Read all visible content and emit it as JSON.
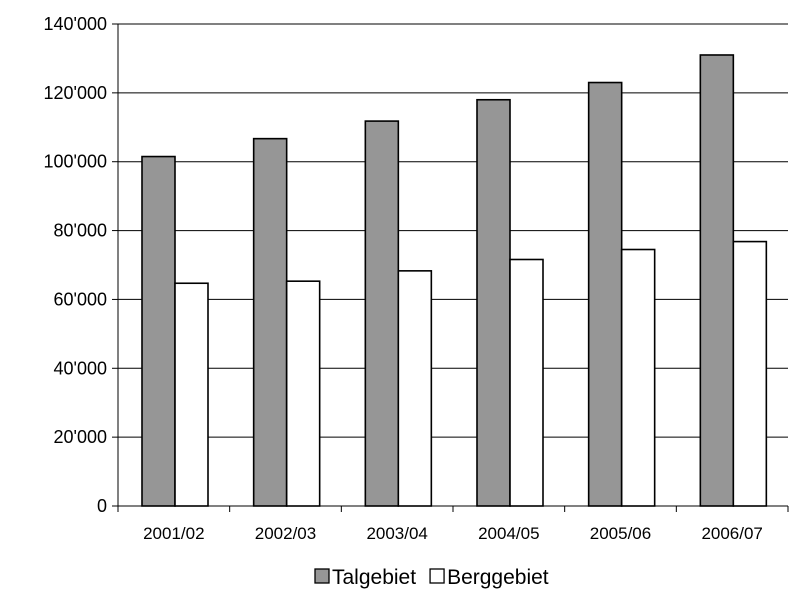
{
  "chart_data": {
    "type": "bar",
    "categories": [
      "2001/02",
      "2002/03",
      "2003/04",
      "2004/05",
      "2005/06",
      "2006/07"
    ],
    "series": [
      {
        "name": "Talgebiet",
        "values": [
          101500,
          106700,
          111800,
          118000,
          123000,
          131000
        ],
        "color": "#969696"
      },
      {
        "name": "Berggebiet",
        "values": [
          64700,
          65300,
          68300,
          71600,
          74500,
          76800
        ],
        "color": "#ffffff"
      }
    ],
    "yticks": [
      "0",
      "20'000",
      "40'000",
      "60'000",
      "80'000",
      "100'000",
      "120'000",
      "140'000"
    ],
    "ylim": [
      0,
      140000
    ],
    "grid": true,
    "legend_position": "bottom"
  }
}
